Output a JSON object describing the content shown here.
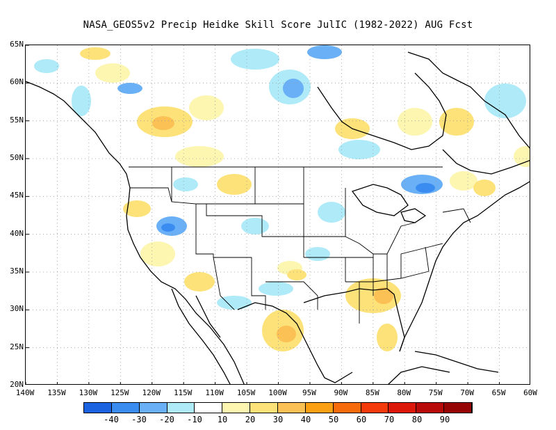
{
  "title": "NASA_GEOS5v2 Precip Heidke Skill Score JulIC (1982-2022) AUG Fcst",
  "lat_labels": [
    "65N",
    "60N",
    "55N",
    "50N",
    "45N",
    "40N",
    "35N",
    "30N",
    "25N",
    "20N"
  ],
  "lon_labels": [
    "140W",
    "135W",
    "130W",
    "125W",
    "120W",
    "115W",
    "110W",
    "105W",
    "100W",
    "95W",
    "90W",
    "85W",
    "80W",
    "75W",
    "70W",
    "65W",
    "60W"
  ],
  "colorbar": {
    "colors": [
      "#1b62e0",
      "#3a8cf0",
      "#6ab0f6",
      "#aeeaf8",
      "#ffffff",
      "#fdf6b0",
      "#fde27a",
      "#fcc155",
      "#fba012",
      "#f86b0a",
      "#f43a0a",
      "#dc1608",
      "#b80a08",
      "#960404"
    ],
    "labels": [
      "-40",
      "-30",
      "-20",
      "-10",
      "10",
      "20",
      "30",
      "40",
      "50",
      "60",
      "70",
      "80",
      "90"
    ]
  },
  "map_extent": {
    "lon": [
      -140,
      -60
    ],
    "lat": [
      20,
      65
    ]
  }
}
